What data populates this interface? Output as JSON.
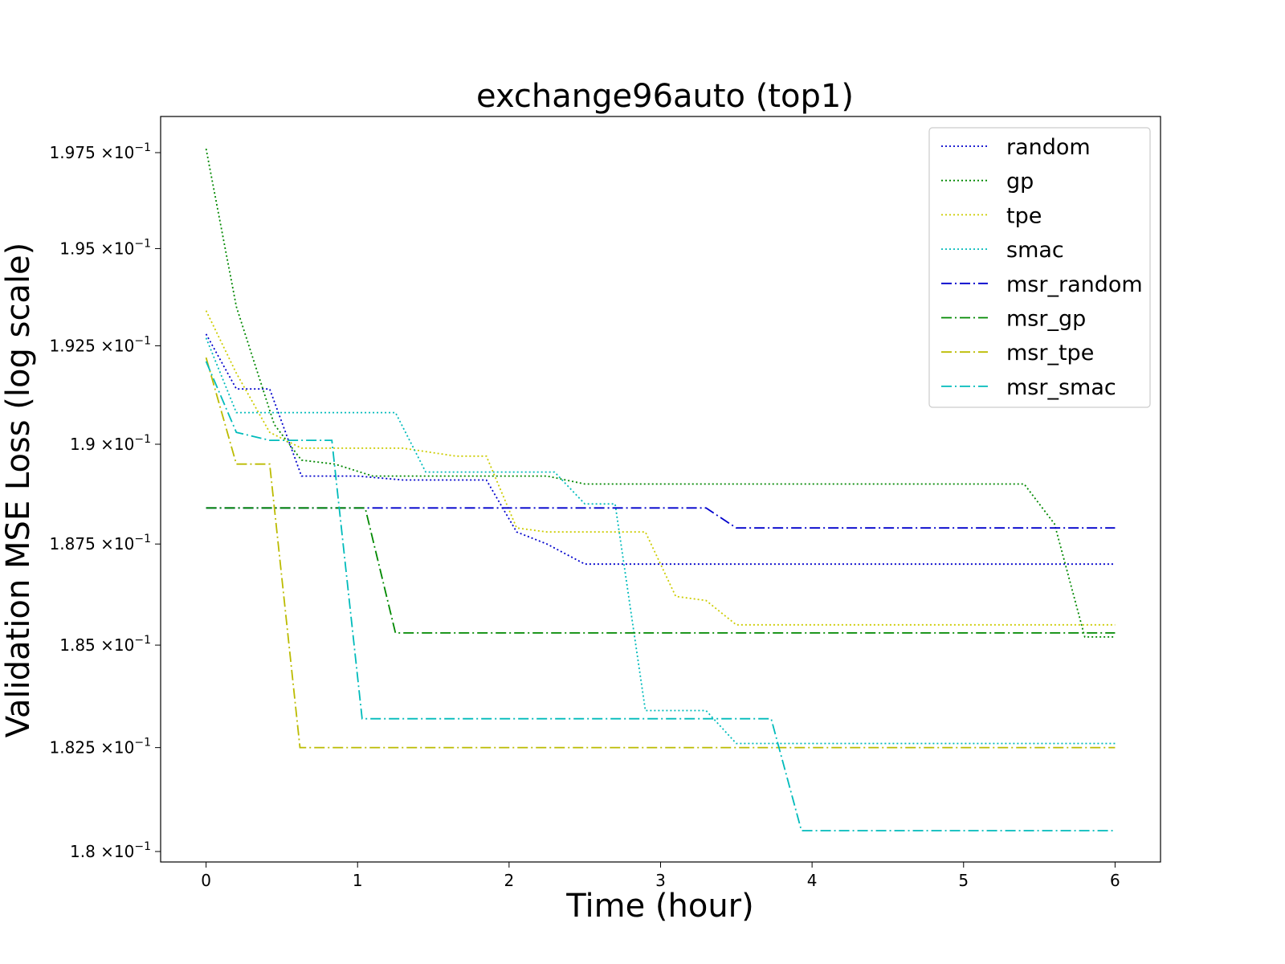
{
  "chart_data": {
    "type": "line",
    "title": "exchange96auto (top1)",
    "xlabel": "Time (hour)",
    "ylabel": "Validation MSE Loss (log scale)",
    "xlim": [
      -0.3,
      6.3
    ],
    "ylim": [
      0.17975,
      0.19845
    ],
    "yscale": "log",
    "grid": false,
    "legend_position": "top-right",
    "x_ticks": [
      0,
      1,
      2,
      3,
      4,
      5,
      6
    ],
    "x_tick_labels": [
      "0",
      "1",
      "2",
      "3",
      "4",
      "5",
      "6"
    ],
    "y_ticks": [
      0.18,
      0.1825,
      0.185,
      0.1875,
      0.19,
      0.1925,
      0.195,
      0.1975
    ],
    "y_tick_mantissas": [
      "1.8",
      "1.825",
      "1.85",
      "1.875",
      "1.9",
      "1.925",
      "1.95",
      "1.975"
    ],
    "y_tick_suffix": "×10",
    "y_tick_exponent": "−1",
    "series": [
      {
        "name": "random",
        "color": "#0000cc",
        "style": "dotted",
        "x": [
          0,
          0.2,
          0.42,
          0.63,
          1.0,
          1.3,
          1.85,
          2.05,
          2.25,
          2.5,
          6
        ],
        "y": [
          0.1928,
          0.1914,
          0.1914,
          0.1892,
          0.1892,
          0.1891,
          0.1891,
          0.1878,
          0.1875,
          0.187,
          0.187
        ]
      },
      {
        "name": "gp",
        "color": "#008800",
        "style": "dotted",
        "x": [
          0,
          0.2,
          0.45,
          0.63,
          0.85,
          1.1,
          2.25,
          2.5,
          5.4,
          5.6,
          5.8,
          6
        ],
        "y": [
          0.1976,
          0.1935,
          0.1905,
          0.1896,
          0.1895,
          0.1892,
          0.1892,
          0.189,
          0.189,
          0.188,
          0.1852,
          0.1852
        ]
      },
      {
        "name": "tpe",
        "color": "#cccc00",
        "style": "dotted",
        "x": [
          0,
          0.2,
          0.42,
          0.63,
          1.0,
          1.3,
          1.65,
          1.85,
          2.05,
          2.25,
          2.9,
          3.1,
          3.3,
          3.5,
          6
        ],
        "y": [
          0.1934,
          0.1918,
          0.1903,
          0.1899,
          0.1899,
          0.1899,
          0.1897,
          0.1897,
          0.1879,
          0.1878,
          0.1878,
          0.1862,
          0.1861,
          0.1855,
          0.1855
        ]
      },
      {
        "name": "smac",
        "color": "#00bbbb",
        "style": "dotted",
        "x": [
          0,
          0.2,
          0.42,
          0.63,
          1.0,
          1.25,
          1.45,
          1.85,
          2.3,
          2.5,
          2.7,
          2.9,
          3.3,
          3.5,
          6
        ],
        "y": [
          0.1927,
          0.1908,
          0.1908,
          0.1908,
          0.1908,
          0.1908,
          0.1893,
          0.1893,
          0.1893,
          0.1885,
          0.1885,
          0.1834,
          0.1834,
          0.1826,
          0.1826
        ]
      },
      {
        "name": "msr_random",
        "color": "#0000cc",
        "style": "dashdot",
        "x": [
          0,
          3.3,
          3.5,
          6
        ],
        "y": [
          0.1884,
          0.1884,
          0.1879,
          0.1879
        ]
      },
      {
        "name": "msr_gp",
        "color": "#008800",
        "style": "dashdot",
        "x": [
          0,
          1.0,
          1.05,
          1.25,
          6
        ],
        "y": [
          0.1884,
          0.1884,
          0.1884,
          0.1853,
          0.1853
        ]
      },
      {
        "name": "msr_tpe",
        "color": "#bbbb00",
        "style": "dashdot",
        "x": [
          0,
          0.2,
          0.42,
          0.62,
          6
        ],
        "y": [
          0.1922,
          0.1895,
          0.1895,
          0.1825,
          0.1825
        ]
      },
      {
        "name": "msr_smac",
        "color": "#00bbbb",
        "style": "dashdot",
        "x": [
          0,
          0.2,
          0.42,
          0.83,
          1.03,
          3.73,
          3.93,
          6
        ],
        "y": [
          0.1921,
          0.1903,
          0.1901,
          0.1901,
          0.1832,
          0.1832,
          0.1805,
          0.1805
        ]
      }
    ]
  }
}
